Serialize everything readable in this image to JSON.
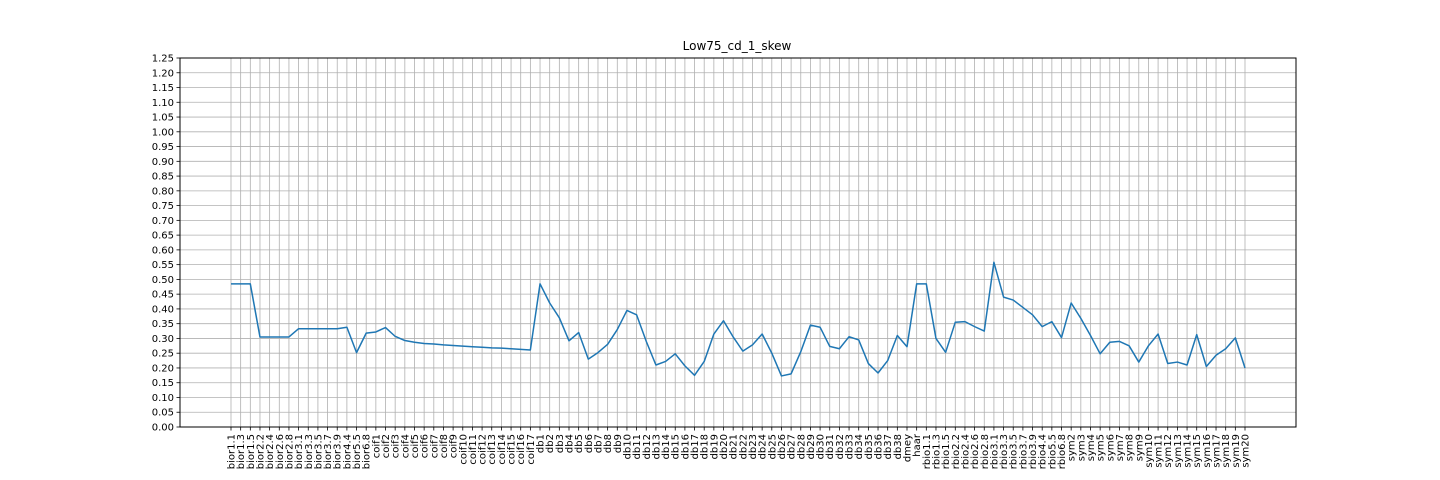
{
  "chart_data": {
    "type": "line",
    "title": "Low75_cd_1_skew",
    "xlabel": "",
    "ylabel": "",
    "ylim": [
      0,
      1.25
    ],
    "ytick_step": 0.05,
    "grid": true,
    "line_color": "#1f77b4",
    "categories": [
      "bior1.1",
      "bior1.3",
      "bior1.5",
      "bior2.2",
      "bior2.4",
      "bior2.6",
      "bior2.8",
      "bior3.1",
      "bior3.3",
      "bior3.5",
      "bior3.7",
      "bior3.9",
      "bior4.4",
      "bior5.5",
      "bior6.8",
      "coif1",
      "coif2",
      "coif3",
      "coif4",
      "coif5",
      "coif6",
      "coif7",
      "coif8",
      "coif9",
      "coif10",
      "coif11",
      "coif12",
      "coif13",
      "coif14",
      "coif15",
      "coif16",
      "coif17",
      "db1",
      "db2",
      "db3",
      "db4",
      "db5",
      "db6",
      "db7",
      "db8",
      "db9",
      "db10",
      "db11",
      "db12",
      "db13",
      "db14",
      "db15",
      "db16",
      "db17",
      "db18",
      "db19",
      "db20",
      "db21",
      "db22",
      "db23",
      "db24",
      "db25",
      "db26",
      "db27",
      "db28",
      "db29",
      "db30",
      "db31",
      "db32",
      "db33",
      "db34",
      "db35",
      "db36",
      "db37",
      "db38",
      "dmey",
      "haar",
      "rbio1.1",
      "rbio1.3",
      "rbio1.5",
      "rbio2.2",
      "rbio2.4",
      "rbio2.6",
      "rbio2.8",
      "rbio3.1",
      "rbio3.3",
      "rbio3.5",
      "rbio3.7",
      "rbio3.9",
      "rbio4.4",
      "rbio5.5",
      "rbio6.8",
      "sym2",
      "sym3",
      "sym4",
      "sym5",
      "sym6",
      "sym7",
      "sym8",
      "sym9",
      "sym10",
      "sym11",
      "sym12",
      "sym13",
      "sym14",
      "sym15",
      "sym16",
      "sym17",
      "sym18",
      "sym19",
      "sym20"
    ],
    "values": [
      0.485,
      0.485,
      0.485,
      0.305,
      0.305,
      0.305,
      0.305,
      0.333,
      0.333,
      0.333,
      0.333,
      0.333,
      0.338,
      0.252,
      0.318,
      0.322,
      0.337,
      0.307,
      0.293,
      0.287,
      0.283,
      0.281,
      0.278,
      0.276,
      0.274,
      0.272,
      0.27,
      0.268,
      0.267,
      0.265,
      0.263,
      0.261,
      0.485,
      0.42,
      0.37,
      0.292,
      0.32,
      0.23,
      0.252,
      0.28,
      0.33,
      0.395,
      0.38,
      0.29,
      0.21,
      0.222,
      0.248,
      0.207,
      0.175,
      0.222,
      0.315,
      0.36,
      0.305,
      0.257,
      0.278,
      0.315,
      0.25,
      0.173,
      0.18,
      0.255,
      0.345,
      0.338,
      0.273,
      0.265,
      0.306,
      0.295,
      0.215,
      0.183,
      0.225,
      0.31,
      0.272,
      0.485,
      0.485,
      0.3,
      0.253,
      0.355,
      0.357,
      0.34,
      0.325,
      0.558,
      0.44,
      0.43,
      0.405,
      0.38,
      0.34,
      0.357,
      0.303,
      0.42,
      0.368,
      0.31,
      0.248,
      0.287,
      0.29,
      0.275,
      0.22,
      0.275,
      0.315,
      0.215,
      0.22,
      0.21,
      0.313,
      0.205,
      0.243,
      0.265,
      0.302,
      0.2
    ]
  }
}
